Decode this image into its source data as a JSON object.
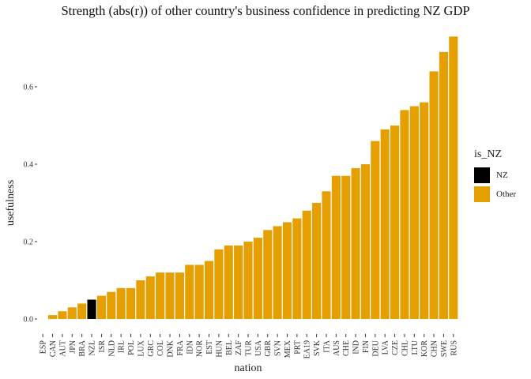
{
  "chart_data": {
    "type": "bar",
    "title": "Strength (abs(r)) of other country's business confidence in predicting NZ GDP",
    "xlabel": "nation",
    "ylabel": "usefulness",
    "ylim": [
      0,
      0.75
    ],
    "yticks": [
      0.0,
      0.2,
      0.4,
      0.6
    ],
    "ytick_labels": [
      "0.0",
      "0.2",
      "0.4",
      "0.6"
    ],
    "grid": false,
    "legend": {
      "title": "is_NZ",
      "placement": "right",
      "entries": [
        {
          "label": "NZ",
          "color": "#000000"
        },
        {
          "label": "Other",
          "color": "#E69F00"
        }
      ]
    },
    "categories": [
      "ESP",
      "CAN",
      "AUT",
      "JPN",
      "BRA",
      "NZL",
      "ISR",
      "NLD",
      "IRL",
      "POL",
      "LUX",
      "GRC",
      "COL",
      "DNK",
      "FRA",
      "IDN",
      "NOR",
      "EST",
      "HUN",
      "BEL",
      "ZAF",
      "TUR",
      "USA",
      "GBR",
      "SVN",
      "MEX",
      "PRT",
      "EA19",
      "SVK",
      "ITA",
      "AUS",
      "CHE",
      "IND",
      "FIN",
      "DEU",
      "LVA",
      "CZE",
      "CHL",
      "LTU",
      "KOR",
      "CHN",
      "SWE",
      "RUS"
    ],
    "values": [
      0.0,
      0.01,
      0.02,
      0.03,
      0.04,
      0.05,
      0.06,
      0.07,
      0.08,
      0.08,
      0.1,
      0.11,
      0.12,
      0.12,
      0.12,
      0.14,
      0.14,
      0.15,
      0.18,
      0.19,
      0.19,
      0.2,
      0.21,
      0.23,
      0.24,
      0.25,
      0.26,
      0.28,
      0.3,
      0.33,
      0.37,
      0.37,
      0.39,
      0.4,
      0.46,
      0.49,
      0.5,
      0.54,
      0.55,
      0.56,
      0.64,
      0.69,
      0.73
    ],
    "groups": [
      "Other",
      "Other",
      "Other",
      "Other",
      "Other",
      "NZ",
      "Other",
      "Other",
      "Other",
      "Other",
      "Other",
      "Other",
      "Other",
      "Other",
      "Other",
      "Other",
      "Other",
      "Other",
      "Other",
      "Other",
      "Other",
      "Other",
      "Other",
      "Other",
      "Other",
      "Other",
      "Other",
      "Other",
      "Other",
      "Other",
      "Other",
      "Other",
      "Other",
      "Other",
      "Other",
      "Other",
      "Other",
      "Other",
      "Other",
      "Other",
      "Other",
      "Other",
      "Other"
    ]
  }
}
